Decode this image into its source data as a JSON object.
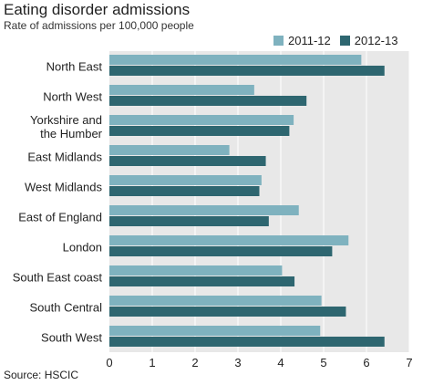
{
  "title": "Eating disorder admissions",
  "subtitle": "Rate of admissions per 100,000 people",
  "source": "Source: HSCIC",
  "colors": {
    "series_2011": "#7fb2bf",
    "series_2012": "#2e6670",
    "plot_bg": "#e8e8e8",
    "grid": "#ffffff"
  },
  "chart_data": {
    "type": "bar",
    "orientation": "horizontal",
    "categories": [
      "North East",
      "North West",
      "Yorkshire and the Humber",
      "East Midlands",
      "West Midlands",
      "East of England",
      "London",
      "South East coast",
      "South Central",
      "South West"
    ],
    "category_lines": [
      [
        "North East"
      ],
      [
        "North West"
      ],
      [
        "Yorkshire and",
        "the Humber"
      ],
      [
        "East Midlands"
      ],
      [
        "West Midlands"
      ],
      [
        "East of England"
      ],
      [
        "London"
      ],
      [
        "South East coast"
      ],
      [
        "South Central"
      ],
      [
        "South West"
      ]
    ],
    "series": [
      {
        "name": "2011-12",
        "values": [
          5.88,
          3.38,
          4.3,
          2.8,
          3.55,
          4.42,
          5.58,
          4.03,
          4.95,
          4.92
        ]
      },
      {
        "name": "2012-13",
        "values": [
          6.42,
          4.6,
          4.2,
          3.65,
          3.5,
          3.72,
          5.2,
          4.32,
          5.52,
          6.42
        ]
      }
    ],
    "xlim": [
      0,
      7
    ],
    "xticks": [
      "0",
      "1",
      "2",
      "3",
      "4",
      "5",
      "6",
      "7"
    ],
    "grid": true,
    "legend_position": "top-right"
  }
}
